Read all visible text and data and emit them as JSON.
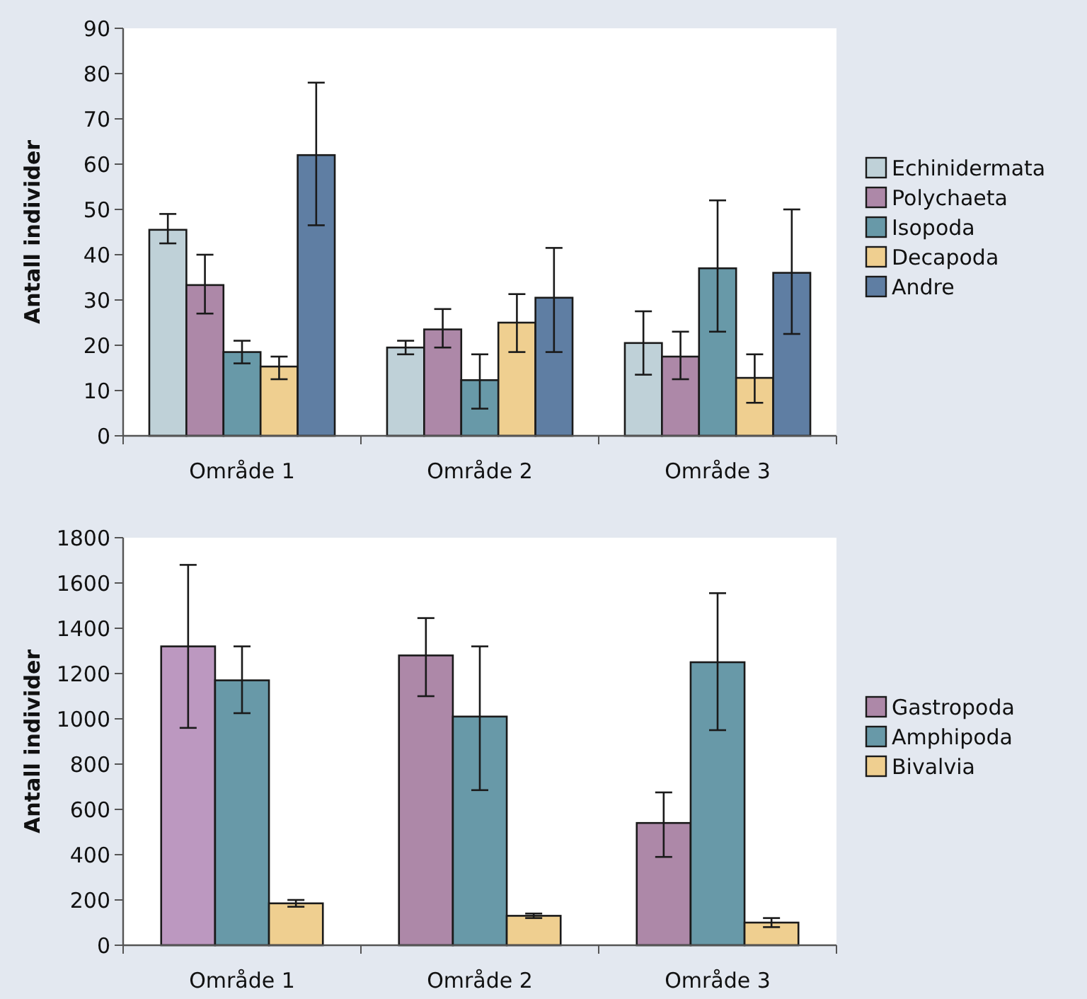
{
  "chart_data": [
    {
      "type": "bar",
      "ylabel": "Antall individer",
      "categories": [
        "Område 1",
        "Område 2",
        "Område 3"
      ],
      "ylim": [
        0,
        90
      ],
      "yticks": [
        0,
        10,
        20,
        30,
        40,
        50,
        60,
        70,
        80,
        90
      ],
      "grid": false,
      "legend": "right",
      "series": [
        {
          "name": "Echinidermata",
          "color": "#bfd1d8",
          "values": [
            45.5,
            19.5,
            20.5
          ],
          "errors": [
            [
              42.5,
              49
            ],
            [
              18,
              21
            ],
            [
              13.5,
              27.5
            ]
          ]
        },
        {
          "name": "Polychaeta",
          "color": "#ad88a8",
          "values": [
            33.3,
            23.5,
            17.5
          ],
          "errors": [
            [
              27,
              40
            ],
            [
              19.5,
              28
            ],
            [
              12.5,
              23
            ]
          ]
        },
        {
          "name": "Isopoda",
          "color": "#6899a8",
          "values": [
            18.5,
            12.3,
            37
          ],
          "errors": [
            [
              16,
              21
            ],
            [
              6,
              18
            ],
            [
              23,
              52
            ]
          ]
        },
        {
          "name": "Decapoda",
          "color": "#efcf90",
          "values": [
            15.3,
            25,
            12.8
          ],
          "errors": [
            [
              12.5,
              17.5
            ],
            [
              18.5,
              31.3
            ],
            [
              7.3,
              18
            ]
          ]
        },
        {
          "name": "Andre",
          "color": "#5f7ea3",
          "values": [
            62,
            30.5,
            36
          ],
          "errors": [
            [
              46.5,
              78
            ],
            [
              18.5,
              41.5
            ],
            [
              22.5,
              50
            ]
          ]
        }
      ]
    },
    {
      "type": "bar",
      "ylabel": "Antall individer",
      "categories": [
        "Område 1",
        "Område 2",
        "Område 3"
      ],
      "ylim": [
        0,
        1800
      ],
      "yticks": [
        0,
        200,
        400,
        600,
        800,
        1000,
        1200,
        1400,
        1600,
        1800
      ],
      "grid": false,
      "legend": "right",
      "series": [
        {
          "name": "Gastropoda",
          "color": "#ad88a8",
          "colors": [
            "#bc98c0",
            "#ad88a8",
            "#ad88a8"
          ],
          "values": [
            1320,
            1280,
            540
          ],
          "errors": [
            [
              960,
              1680
            ],
            [
              1100,
              1445
            ],
            [
              390,
              675
            ]
          ]
        },
        {
          "name": "Amphipoda",
          "color": "#6899a8",
          "values": [
            1170,
            1010,
            1250
          ],
          "errors": [
            [
              1025,
              1320
            ],
            [
              685,
              1320
            ],
            [
              950,
              1555
            ]
          ]
        },
        {
          "name": "Bivalvia",
          "color": "#efcf90",
          "values": [
            185,
            130,
            100
          ],
          "errors": [
            [
              170,
              200
            ],
            [
              120,
              140
            ],
            [
              80,
              120
            ]
          ]
        }
      ]
    }
  ]
}
